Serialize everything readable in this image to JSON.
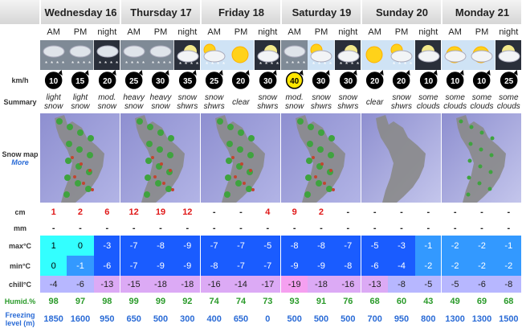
{
  "days": [
    "Wednesday 16",
    "Thursday 17",
    "Friday 18",
    "Saturday 19",
    "Sunday 20",
    "Monday 21"
  ],
  "periods": [
    "AM",
    "PM",
    "night",
    "AM",
    "PM",
    "night",
    "AM",
    "PM",
    "night",
    "AM",
    "PM",
    "night",
    "AM",
    "PM",
    "night",
    "AM",
    "PM",
    "night"
  ],
  "labels": {
    "wind": "km/h",
    "summary": "Summary",
    "snow_map": "Snow map",
    "more": "More",
    "snow": "cm",
    "rain": "mm",
    "max": "max°C",
    "min": "min°C",
    "chill": "chill°C",
    "humid": "Humid.%",
    "freezing": "Freezing level (m)"
  },
  "wind": [
    10,
    15,
    20,
    25,
    30,
    35,
    25,
    20,
    30,
    40,
    30,
    30,
    20,
    20,
    10,
    10,
    10,
    25
  ],
  "summary": [
    "light snow",
    "light snow",
    "mod. snow",
    "heavy snow",
    "heavy snow",
    "snow shwrs",
    "snow shwrs",
    "clear",
    "snow shwrs",
    "mod. snow",
    "snow shwrs",
    "snow shwrs",
    "clear",
    "snow shwrs",
    "some clouds",
    "some clouds",
    "some clouds",
    "some clouds"
  ],
  "snow": [
    1,
    2,
    6,
    12,
    19,
    12,
    "-",
    "-",
    4,
    9,
    2,
    "-",
    "-",
    "-",
    "-",
    "-",
    "-",
    "-"
  ],
  "rain": [
    "-",
    "-",
    "-",
    "-",
    "-",
    "-",
    "-",
    "-",
    "-",
    "-",
    "-",
    "-",
    "-",
    "-",
    "-",
    "-",
    "-",
    "-"
  ],
  "max": [
    1,
    0,
    -3,
    -7,
    -8,
    -9,
    -7,
    -7,
    -5,
    -8,
    -8,
    -7,
    -5,
    -3,
    -1,
    -2,
    -2,
    -1
  ],
  "min": [
    0,
    -1,
    -6,
    -7,
    -9,
    -9,
    -8,
    -7,
    -7,
    -9,
    -9,
    -8,
    -6,
    -4,
    -2,
    -2,
    -2,
    -2
  ],
  "chill": [
    -4,
    -6,
    -13,
    -15,
    -18,
    -18,
    -16,
    -14,
    -17,
    -19,
    -18,
    -16,
    -13,
    -8,
    -5,
    -5,
    -6,
    -8
  ],
  "humid": [
    98,
    97,
    98,
    99,
    99,
    92,
    74,
    74,
    73,
    93,
    91,
    76,
    68,
    60,
    43,
    49,
    69,
    68
  ],
  "freezing": [
    1850,
    1600,
    950,
    650,
    500,
    300,
    400,
    650,
    0,
    500,
    500,
    500,
    700,
    950,
    800,
    1300,
    1300,
    1500
  ]
}
